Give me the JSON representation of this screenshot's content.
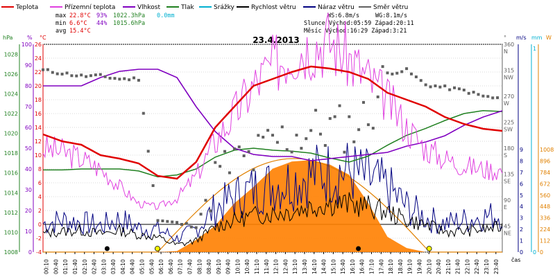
{
  "chart_data": {
    "type": "line",
    "title": "23.4.2013",
    "legend": [
      {
        "label": "Teplota",
        "color": "#e00000"
      },
      {
        "label": "Přízemní teplota",
        "color": "#e040e0"
      },
      {
        "label": "Vlhkost",
        "color": "#8000c0"
      },
      {
        "label": "Tlak",
        "color": "#208020"
      },
      {
        "label": "Srážky",
        "color": "#00b0d0"
      },
      {
        "label": "Rychlost větru",
        "color": "#000000"
      },
      {
        "label": "Náraz větru",
        "color": "#000080"
      },
      {
        "label": "Směr větru",
        "color": "#606060"
      }
    ],
    "stats": {
      "max_label": "max",
      "max_temp": "22.8°C",
      "max_hum": "93%",
      "max_press": "1022.3hPa",
      "rain": "0.0mm",
      "min_label": "min",
      "min_temp": "6.6°C",
      "min_hum": "44%",
      "min_press": "1015.6hPa",
      "avg_label": "avg",
      "avg_temp": "15.4°C",
      "ws": "WS:6.8m/s",
      "wg": "WG:8.1m/s",
      "sun": "Slunce Východ:05:59  Západ:20:11",
      "moon": "Měsíc  Východ:16:29  Západ:3:21"
    },
    "axes": {
      "hpa_label": "hPa",
      "pct_label": "%",
      "c_label": "°C",
      "deg_label": "°",
      "ms_label": "m/s",
      "mm_label": "mm",
      "w_label": "W",
      "xlabel": "čas",
      "hpa_ticks": [
        "1028",
        "1026",
        "1024",
        "1022",
        "1020",
        "1018",
        "1016",
        "1014",
        "1012",
        "1010",
        "1008"
      ],
      "pct_ticks": [
        "100",
        "90",
        "80",
        "70",
        "60",
        "50",
        "40",
        "30",
        "20",
        "10",
        "0"
      ],
      "c_ticks": [
        "26",
        "24",
        "22",
        "20",
        "18",
        "16",
        "14",
        "12",
        "10",
        "8",
        "6",
        "4",
        "2",
        "0",
        "-2",
        "-4"
      ],
      "deg_ticks": [
        "360",
        "N",
        "315",
        "NW",
        "270",
        "W",
        "225",
        "SW",
        "180",
        "S",
        "135",
        "SE",
        "90",
        "E",
        "45",
        "NE"
      ],
      "ms_ticks": [
        "9",
        "8",
        "7",
        "6",
        "5",
        "4",
        "3",
        "2",
        "1",
        "0"
      ],
      "mm_ticks": [
        "1",
        "0"
      ],
      "w_ticks": [
        "1008",
        "896",
        "784",
        "672",
        "560",
        "448",
        "336",
        "224",
        "112",
        "0"
      ],
      "x_ticks": [
        "00:10",
        "00:40",
        "01:10",
        "01:40",
        "02:10",
        "02:40",
        "03:10",
        "03:40",
        "04:10",
        "04:40",
        "05:10",
        "05:40",
        "06:10",
        "06:40",
        "07:10",
        "07:40",
        "08:10",
        "08:40",
        "09:10",
        "09:40",
        "10:10",
        "10:40",
        "11:10",
        "11:40",
        "12:10",
        "12:40",
        "13:10",
        "13:40",
        "14:10",
        "14:40",
        "15:10",
        "15:40",
        "16:10",
        "16:40",
        "17:10",
        "17:40",
        "18:10",
        "18:40",
        "19:10",
        "19:40",
        "20:10",
        "20:40",
        "21:10",
        "21:40",
        "22:10",
        "22:40",
        "23:10",
        "23:40"
      ]
    },
    "x_hours": [
      0,
      1,
      2,
      3,
      4,
      5,
      6,
      7,
      8,
      9,
      10,
      11,
      12,
      13,
      14,
      15,
      16,
      17,
      18,
      19,
      20,
      21,
      22,
      23,
      24
    ],
    "series": [
      {
        "name": "Teplota",
        "unit": "°C",
        "values": [
          13,
          12,
          11.5,
          10,
          9.5,
          8.8,
          7,
          6.6,
          9,
          14,
          17,
          20,
          21,
          22,
          22.8,
          22.5,
          22,
          21,
          19,
          18,
          17,
          15.5,
          14.5,
          13.8,
          13.5
        ]
      },
      {
        "name": "Přízemní teplota",
        "unit": "°C",
        "values": [
          11,
          10.5,
          9.5,
          8,
          5.5,
          3,
          2.5,
          3.8,
          7,
          12,
          16,
          20,
          23,
          25,
          26,
          26.5,
          24,
          21,
          18,
          14,
          11,
          9.5,
          8.5,
          8,
          7.8
        ]
      },
      {
        "name": "Vlhkost",
        "unit": "%",
        "values": [
          80,
          80,
          80,
          84,
          87,
          88,
          88,
          84,
          70,
          58,
          50,
          47,
          46,
          46,
          44,
          45,
          46,
          47,
          48,
          51,
          53,
          56,
          61,
          65,
          68
        ]
      },
      {
        "name": "Tlak",
        "unit": "hPa",
        "values": [
          1016.3,
          1016.3,
          1016.4,
          1016.4,
          1016.4,
          1016.2,
          1015.6,
          1015.8,
          1016.4,
          1017.6,
          1018.3,
          1018.5,
          1018.3,
          1018.2,
          1018.0,
          1017.5,
          1017.1,
          1017.7,
          1018.8,
          1019.8,
          1020.5,
          1021.3,
          1022.0,
          1022.3,
          1022.2
        ]
      },
      {
        "name": "Rychlost větru",
        "unit": "m/s",
        "values": [
          1.6,
          1.8,
          1.9,
          1.6,
          1.9,
          1.5,
          1.3,
          0.6,
          1.0,
          2.2,
          2.8,
          3.2,
          3.4,
          3.6,
          4.0,
          4.3,
          4.2,
          4.0,
          3.5,
          2.8,
          2.4,
          1.8,
          1.8,
          2.0,
          2.2
        ]
      },
      {
        "name": "Náraz větru",
        "unit": "m/s",
        "values": [
          2.5,
          2.8,
          2.6,
          2.3,
          2.9,
          2.1,
          2.0,
          1.2,
          2.0,
          3.8,
          4.8,
          5.5,
          5.9,
          6.2,
          6.8,
          7.0,
          7.1,
          6.4,
          5.6,
          4.0,
          3.0,
          2.5,
          2.8,
          3.1,
          3.3
        ]
      },
      {
        "name": "Sluneční záření",
        "unit": "W",
        "values": [
          0,
          0,
          0,
          0,
          0,
          0,
          0,
          10,
          120,
          260,
          480,
          640,
          820,
          890,
          905,
          860,
          760,
          480,
          150,
          40,
          0,
          0,
          0,
          0,
          0
        ]
      },
      {
        "name": "Směr větru",
        "unit": "°",
        "values": [
          315,
          310,
          305,
          305,
          300,
          300,
          55,
          50,
          45,
          130,
          155,
          160,
          190,
          200,
          210,
          215,
          215,
          235,
          310,
          315,
          290,
          285,
          280,
          270,
          265
        ]
      }
    ],
    "ylims": {
      "hpa": [
        1008,
        1029
      ],
      "pct": [
        0,
        100
      ],
      "c": [
        -4,
        26
      ],
      "deg": [
        0,
        360
      ],
      "ms": [
        0,
        9
      ],
      "w": [
        0,
        1008
      ]
    }
  }
}
